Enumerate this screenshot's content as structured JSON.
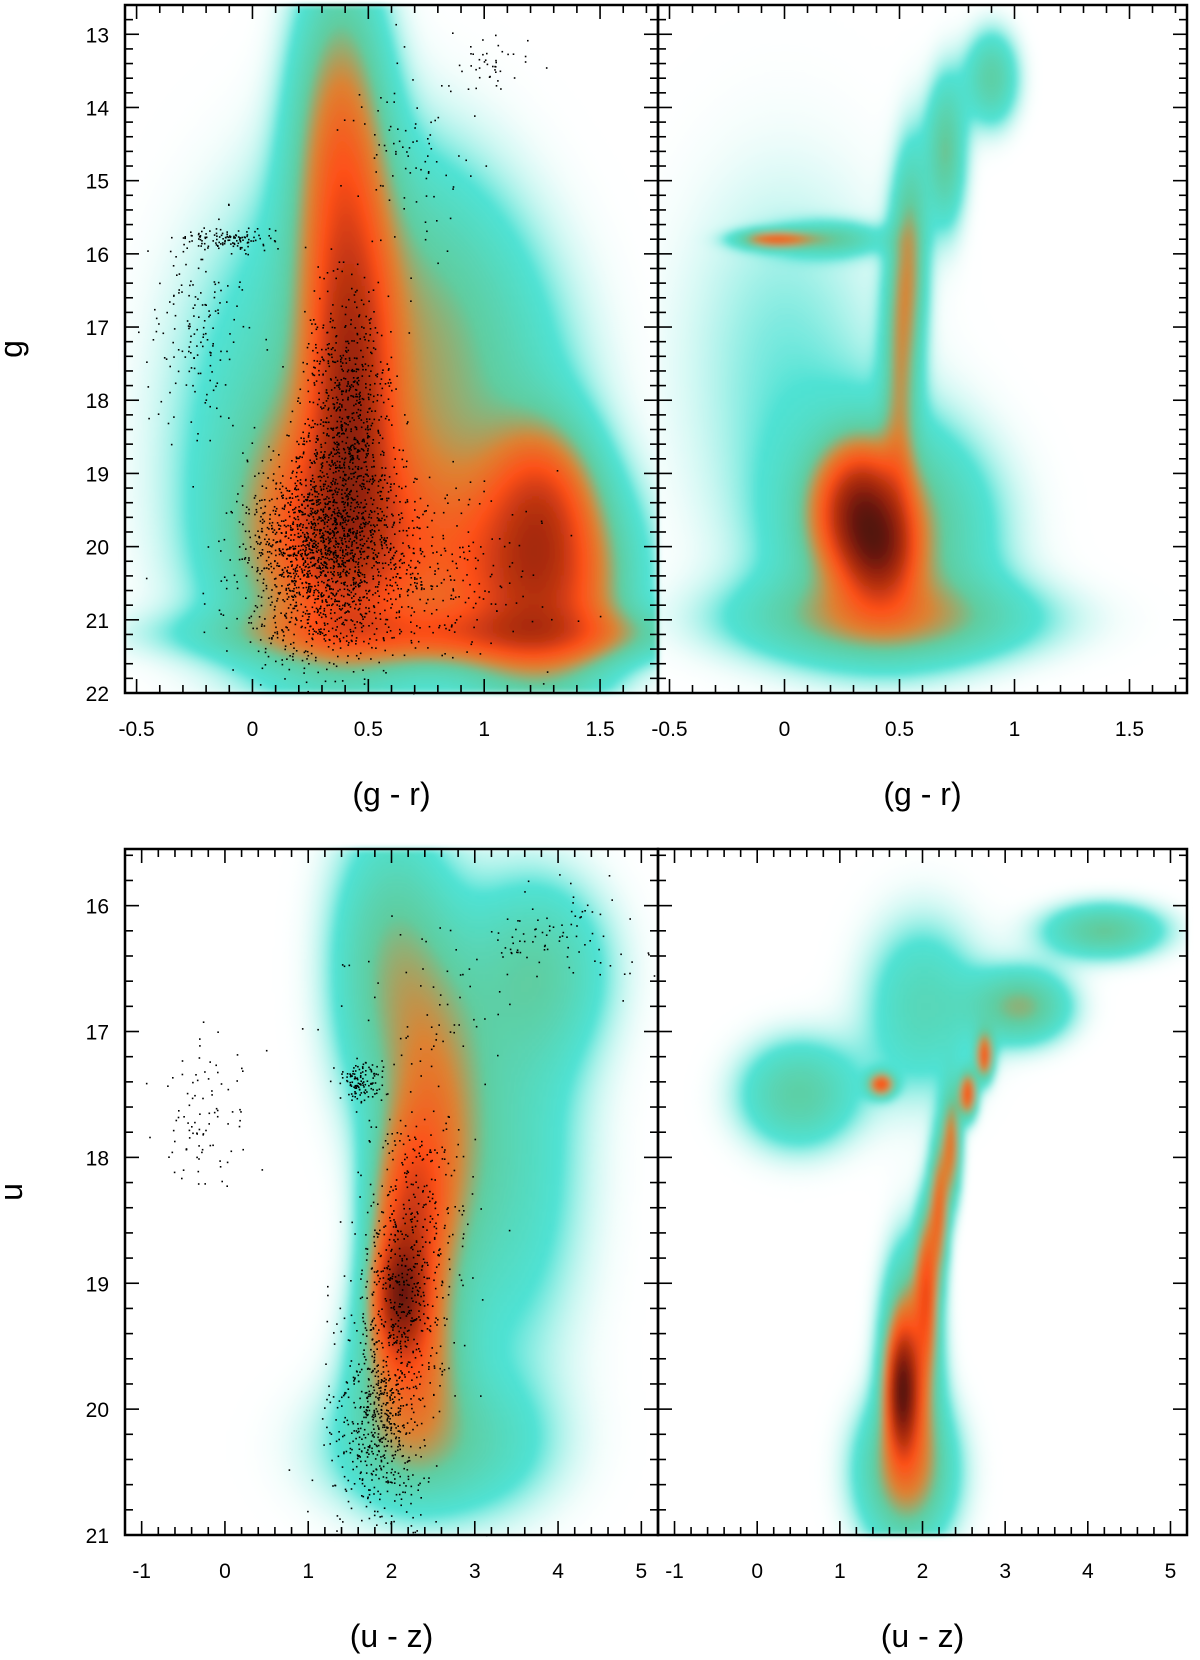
{
  "chart_data": [
    {
      "type": "scatter",
      "panel": "top-left",
      "xlabel": "(g - r)",
      "ylabel": "g",
      "xlim": [
        -0.55,
        1.75
      ],
      "ylim": [
        22,
        12.6
      ],
      "y_inverted": true,
      "x_ticks": [
        "-0.5",
        "0",
        "0.5",
        "1",
        "1.5"
      ],
      "y_ticks": [
        "13",
        "14",
        "15",
        "16",
        "17",
        "18",
        "19",
        "20",
        "21",
        "22"
      ],
      "background": "density map (cyan to orange to black)",
      "overlay": "black point scatter",
      "density_blobs": [
        {
          "x": 0.38,
          "y": 14.5,
          "sx": 0.14,
          "sy": 1.6,
          "w": 0.7
        },
        {
          "x": 0.42,
          "y": 17.8,
          "sx": 0.12,
          "sy": 1.5,
          "w": 1.0
        },
        {
          "x": 0.35,
          "y": 19.8,
          "sx": 0.25,
          "sy": 1.2,
          "w": 0.8
        },
        {
          "x": 0.8,
          "y": 20.2,
          "sx": 0.45,
          "sy": 1.0,
          "w": 0.55
        },
        {
          "x": 1.25,
          "y": 20.6,
          "sx": 0.22,
          "sy": 0.9,
          "w": 0.95
        },
        {
          "x": 1.25,
          "y": 19.3,
          "sx": 0.15,
          "sy": 0.7,
          "w": 0.6
        },
        {
          "x": 0.9,
          "y": 21.2,
          "sx": 0.7,
          "sy": 0.25,
          "w": 0.5
        },
        {
          "x": 0.6,
          "y": 16.5,
          "sx": 0.35,
          "sy": 1.5,
          "w": 0.35
        },
        {
          "x": 0.9,
          "y": 18.0,
          "sx": 0.35,
          "sy": 1.5,
          "w": 0.3
        },
        {
          "x": 0.0,
          "y": 18.5,
          "sx": 0.3,
          "sy": 2.0,
          "w": 0.2
        }
      ],
      "point_groups": [
        {
          "n": 1600,
          "x": 0.3,
          "y": 20.0,
          "sx": 0.17,
          "sy": 0.75
        },
        {
          "n": 700,
          "x": 0.4,
          "y": 18.2,
          "sx": 0.1,
          "sy": 0.9
        },
        {
          "n": 500,
          "x": 0.6,
          "y": 20.4,
          "sx": 0.3,
          "sy": 0.6
        },
        {
          "n": 120,
          "x": -0.1,
          "y": 15.8,
          "sx": 0.1,
          "sy": 0.08
        },
        {
          "n": 160,
          "x": -0.25,
          "y": 17.0,
          "sx": 0.12,
          "sy": 0.7
        },
        {
          "n": 90,
          "x": 0.7,
          "y": 14.5,
          "sx": 0.12,
          "sy": 0.7
        },
        {
          "n": 40,
          "x": 1.0,
          "y": 13.4,
          "sx": 0.1,
          "sy": 0.2
        }
      ]
    },
    {
      "type": "heatmap",
      "panel": "top-right",
      "xlabel": "(g - r)",
      "ylabel": "",
      "xlim": [
        -0.55,
        1.75
      ],
      "ylim": [
        22,
        12.6
      ],
      "y_inverted": true,
      "x_ticks": [
        "-0.5",
        "0",
        "0.5",
        "1",
        "1.5"
      ],
      "background": "density map (cyan to orange to black)",
      "density_blobs": [
        {
          "x": 0.33,
          "y": 19.5,
          "sx": 0.12,
          "sy": 0.55,
          "w": 1.3
        },
        {
          "x": 0.42,
          "y": 20.1,
          "sx": 0.1,
          "sy": 0.45,
          "w": 0.9
        },
        {
          "x": 0.45,
          "y": 19.8,
          "sx": 0.3,
          "sy": 1.0,
          "w": 0.55
        },
        {
          "x": 0.45,
          "y": 21.0,
          "sx": 0.45,
          "sy": 0.4,
          "w": 0.45
        },
        {
          "x": 0.5,
          "y": 17.5,
          "sx": 0.05,
          "sy": 1.2,
          "w": 0.45
        },
        {
          "x": 0.55,
          "y": 16.0,
          "sx": 0.05,
          "sy": 1.0,
          "w": 0.45
        },
        {
          "x": 0.7,
          "y": 14.6,
          "sx": 0.06,
          "sy": 0.7,
          "w": 0.45
        },
        {
          "x": 0.9,
          "y": 13.6,
          "sx": 0.08,
          "sy": 0.45,
          "w": 0.4
        },
        {
          "x": -0.05,
          "y": 15.8,
          "sx": 0.1,
          "sy": 0.08,
          "w": 0.7
        },
        {
          "x": 0.2,
          "y": 15.8,
          "sx": 0.15,
          "sy": 0.15,
          "w": 0.35
        },
        {
          "x": 0.0,
          "y": 17.5,
          "sx": 0.35,
          "sy": 2.0,
          "w": 0.15
        }
      ]
    },
    {
      "type": "scatter",
      "panel": "bottom-left",
      "xlabel": "(u - z)",
      "ylabel": "u",
      "xlim": [
        -1.2,
        5.2
      ],
      "ylim": [
        21,
        15.55
      ],
      "y_inverted": true,
      "x_ticks": [
        "-1",
        "0",
        "1",
        "2",
        "3",
        "4",
        "5"
      ],
      "y_ticks": [
        "16",
        "17",
        "18",
        "19",
        "20",
        "21"
      ],
      "background": "density map (cyan to orange to black)",
      "overlay": "black point scatter",
      "density_blobs": [
        {
          "x": 2.1,
          "y": 19.1,
          "sx": 0.2,
          "sy": 0.3,
          "w": 1.1
        },
        {
          "x": 2.2,
          "y": 18.5,
          "sx": 0.3,
          "sy": 0.5,
          "w": 0.8
        },
        {
          "x": 2.2,
          "y": 19.6,
          "sx": 0.4,
          "sy": 0.5,
          "w": 0.7
        },
        {
          "x": 2.5,
          "y": 17.8,
          "sx": 0.4,
          "sy": 0.8,
          "w": 0.5
        },
        {
          "x": 2.0,
          "y": 16.5,
          "sx": 0.5,
          "sy": 0.8,
          "w": 0.45
        },
        {
          "x": 3.3,
          "y": 18.0,
          "sx": 0.7,
          "sy": 1.2,
          "w": 0.3
        },
        {
          "x": 2.5,
          "y": 20.3,
          "sx": 0.9,
          "sy": 0.4,
          "w": 0.35
        },
        {
          "x": 3.8,
          "y": 16.5,
          "sx": 0.6,
          "sy": 0.5,
          "w": 0.3
        }
      ],
      "point_groups": [
        {
          "n": 500,
          "x": 1.8,
          "y": 20.1,
          "sx": 0.25,
          "sy": 0.35
        },
        {
          "n": 400,
          "x": 2.1,
          "y": 19.2,
          "sx": 0.3,
          "sy": 0.45
        },
        {
          "n": 250,
          "x": 2.3,
          "y": 18.3,
          "sx": 0.3,
          "sy": 0.5
        },
        {
          "n": 120,
          "x": 1.6,
          "y": 17.4,
          "sx": 0.12,
          "sy": 0.08
        },
        {
          "n": 90,
          "x": -0.2,
          "y": 17.7,
          "sx": 0.3,
          "sy": 0.35
        },
        {
          "n": 90,
          "x": 4.0,
          "y": 16.2,
          "sx": 0.5,
          "sy": 0.2
        },
        {
          "n": 60,
          "x": 2.5,
          "y": 16.8,
          "sx": 0.5,
          "sy": 0.4
        },
        {
          "n": 50,
          "x": 2.0,
          "y": 20.7,
          "sx": 0.4,
          "sy": 0.2
        }
      ]
    },
    {
      "type": "heatmap",
      "panel": "bottom-right",
      "xlabel": "(u - z)",
      "ylabel": "",
      "xlim": [
        -1.2,
        5.2
      ],
      "ylim": [
        21,
        15.55
      ],
      "y_inverted": true,
      "x_ticks": [
        "-1",
        "0",
        "1",
        "2",
        "3",
        "4",
        "5"
      ],
      "background": "density map (cyan to orange to black)",
      "density_blobs": [
        {
          "x": 1.75,
          "y": 19.85,
          "sx": 0.12,
          "sy": 0.3,
          "w": 1.4
        },
        {
          "x": 1.85,
          "y": 19.6,
          "sx": 0.22,
          "sy": 0.55,
          "w": 0.8
        },
        {
          "x": 2.05,
          "y": 19.0,
          "sx": 0.09,
          "sy": 0.4,
          "w": 0.75
        },
        {
          "x": 2.2,
          "y": 18.4,
          "sx": 0.08,
          "sy": 0.35,
          "w": 0.75
        },
        {
          "x": 2.35,
          "y": 17.9,
          "sx": 0.08,
          "sy": 0.3,
          "w": 0.7
        },
        {
          "x": 2.55,
          "y": 17.5,
          "sx": 0.07,
          "sy": 0.12,
          "w": 0.9
        },
        {
          "x": 2.75,
          "y": 17.2,
          "sx": 0.07,
          "sy": 0.12,
          "w": 0.85
        },
        {
          "x": 1.5,
          "y": 17.42,
          "sx": 0.1,
          "sy": 0.06,
          "w": 0.9
        },
        {
          "x": 3.2,
          "y": 16.8,
          "sx": 0.4,
          "sy": 0.2,
          "w": 0.5
        },
        {
          "x": 4.2,
          "y": 16.2,
          "sx": 0.5,
          "sy": 0.15,
          "w": 0.45
        },
        {
          "x": 0.5,
          "y": 17.5,
          "sx": 0.5,
          "sy": 0.3,
          "w": 0.4
        },
        {
          "x": 1.8,
          "y": 20.5,
          "sx": 0.4,
          "sy": 0.4,
          "w": 0.6
        },
        {
          "x": 2.0,
          "y": 16.8,
          "sx": 0.5,
          "sy": 0.5,
          "w": 0.3
        }
      ]
    }
  ]
}
